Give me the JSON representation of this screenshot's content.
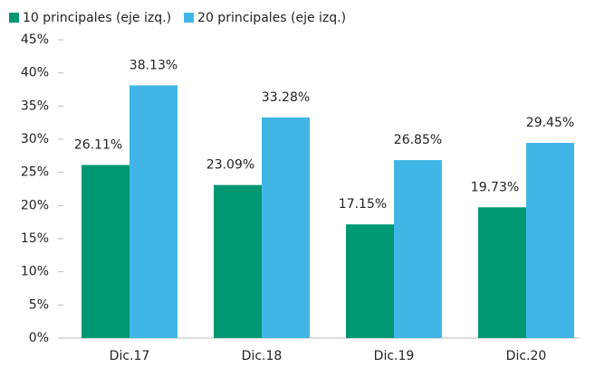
{
  "chart_data": {
    "type": "bar",
    "categories": [
      "Dic.17",
      "Dic.18",
      "Dic.19",
      "Dic.20"
    ],
    "series": [
      {
        "name": "10 principales (eje izq.)",
        "color": "#009873",
        "values": [
          26.11,
          23.09,
          17.15,
          19.73
        ],
        "value_labels": [
          "26.11%",
          "23.09%",
          "17.15%",
          "19.73%"
        ]
      },
      {
        "name": "20 principales (eje izq.)",
        "color": "#41b6e6",
        "values": [
          38.13,
          33.28,
          26.85,
          29.45
        ],
        "value_labels": [
          "38.13%",
          "33.28%",
          "26.85%",
          "29.45%"
        ]
      }
    ],
    "ylim": [
      0,
      45
    ],
    "yticks": [
      {
        "value": 0,
        "label": "0%"
      },
      {
        "value": 5,
        "label": "5%"
      },
      {
        "value": 10,
        "label": "10%"
      },
      {
        "value": 15,
        "label": "15%"
      },
      {
        "value": 20,
        "label": "20%"
      },
      {
        "value": 25,
        "label": "25%"
      },
      {
        "value": 30,
        "label": "30%"
      },
      {
        "value": 35,
        "label": "35%"
      },
      {
        "value": 40,
        "label": "40%"
      },
      {
        "value": 45,
        "label": "45%"
      }
    ],
    "legend": "top"
  }
}
